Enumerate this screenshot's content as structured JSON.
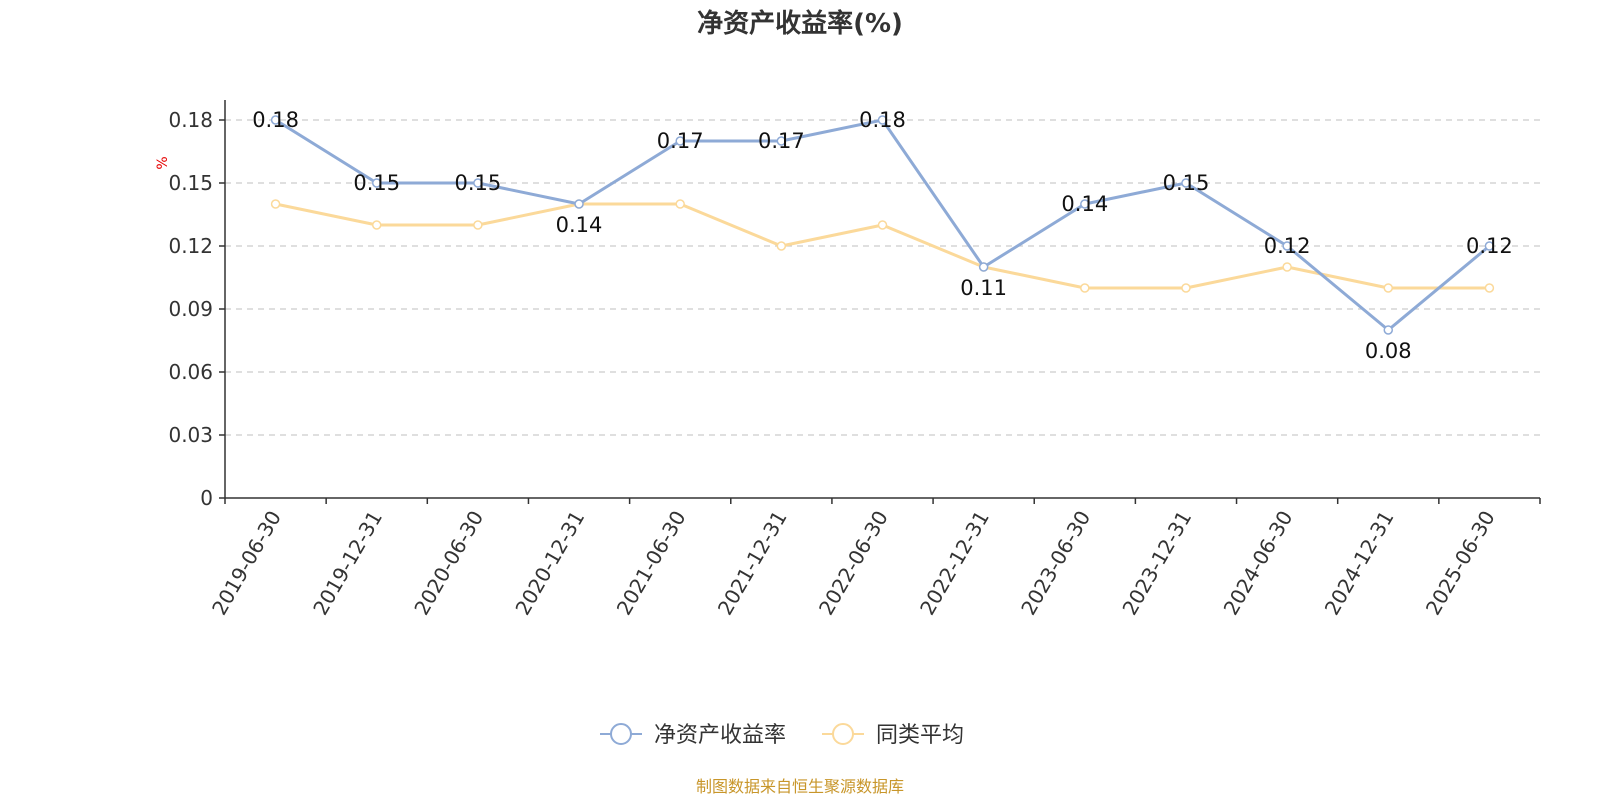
{
  "chart_data": {
    "type": "line",
    "title": "净资产收益率(%)",
    "ylabel": "%",
    "ylim": [
      0,
      0.18
    ],
    "yticks": [
      0,
      0.03,
      0.06,
      0.09,
      0.12,
      0.15,
      0.18
    ],
    "ytick_labels": [
      "0",
      "0.03",
      "0.06",
      "0.09",
      "0.12",
      "0.15",
      "0.18"
    ],
    "grid": true,
    "legend_position": "bottom",
    "categories": [
      "2019-06-30",
      "2019-12-31",
      "2020-06-30",
      "2020-12-31",
      "2021-06-30",
      "2021-12-31",
      "2022-06-30",
      "2022-12-31",
      "2023-06-30",
      "2023-12-31",
      "2024-06-30",
      "2024-12-31",
      "2025-06-30"
    ],
    "series": [
      {
        "name": "净资产收益率",
        "color": "#8eaad6",
        "values": [
          0.18,
          0.15,
          0.15,
          0.14,
          0.17,
          0.17,
          0.18,
          0.11,
          0.14,
          0.15,
          0.12,
          0.08,
          0.12
        ],
        "labels": [
          "0.18",
          "0.15",
          "0.15",
          "0.14",
          "0.17",
          "0.17",
          "0.18",
          "0.11",
          "0.14",
          "0.15",
          "0.12",
          "0.08",
          "0.12"
        ]
      },
      {
        "name": "同类平均",
        "color": "#fbd99a",
        "values": [
          0.14,
          0.13,
          0.13,
          0.14,
          0.14,
          0.12,
          0.13,
          0.11,
          0.1,
          0.1,
          0.11,
          0.1,
          0.1
        ]
      }
    ],
    "source": "制图数据来自恒生聚源数据库"
  }
}
